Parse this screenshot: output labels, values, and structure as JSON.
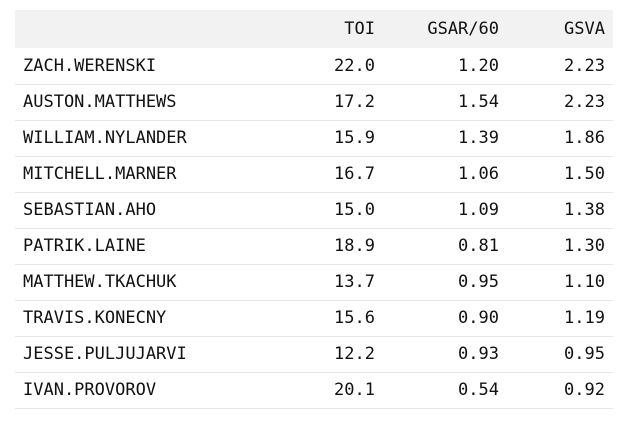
{
  "table": {
    "columns": [
      "",
      "TOI",
      "GSAR/60",
      "GSVA"
    ],
    "rows": [
      [
        "ZACH.WERENSKI",
        "22.0",
        "1.20",
        "2.23"
      ],
      [
        "AUSTON.MATTHEWS",
        "17.2",
        "1.54",
        "2.23"
      ],
      [
        "WILLIAM.NYLANDER",
        "15.9",
        "1.39",
        "1.86"
      ],
      [
        "MITCHELL.MARNER",
        "16.7",
        "1.06",
        "1.50"
      ],
      [
        "SEBASTIAN.AHO",
        "15.0",
        "1.09",
        "1.38"
      ],
      [
        "PATRIK.LAINE",
        "18.9",
        "0.81",
        "1.30"
      ],
      [
        "MATTHEW.TKACHUK",
        "13.7",
        "0.95",
        "1.10"
      ],
      [
        "TRAVIS.KONECNY",
        "15.6",
        "0.90",
        "1.19"
      ],
      [
        "JESSE.PULJUJARVI",
        "12.2",
        "0.93",
        "0.95"
      ],
      [
        "IVAN.PROVOROV",
        "20.1",
        "0.54",
        "0.92"
      ]
    ]
  }
}
